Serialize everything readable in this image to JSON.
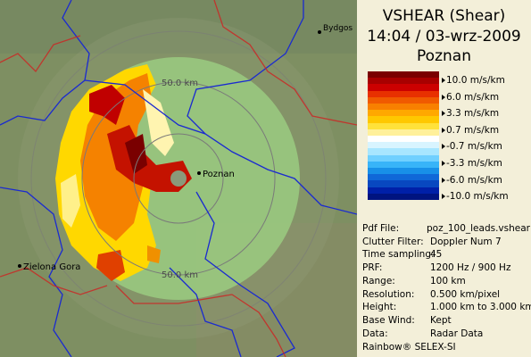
{
  "header": {
    "product": "VSHEAR (Shear)",
    "datetime": "14:04 / 03-wrz-2009",
    "site": "Poznan"
  },
  "legend": {
    "colors": [
      "#7a0000",
      "#a80000",
      "#cc0000",
      "#e83000",
      "#f05a00",
      "#f88000",
      "#ffa800",
      "#ffc800",
      "#ffe23a",
      "#fff09a",
      "#ffffff",
      "#d8f4ff",
      "#a8e6ff",
      "#70d0ff",
      "#38b4f8",
      "#1890e8",
      "#1068d8",
      "#0848c0",
      "#0020a8",
      "#001480"
    ],
    "labels": [
      "10.0 m/s/km",
      "6.0 m/s/km",
      "3.3 m/s/km",
      "0.7 m/s/km",
      "-0.7 m/s/km",
      "-3.3 m/s/km",
      "-6.0 m/s/km",
      "-10.0 m/s/km"
    ]
  },
  "info": [
    {
      "key": "Pdf File:",
      "value": "poz_100_leads.vshear"
    },
    {
      "key": "Clutter Filter:",
      "value": "Doppler Num 7"
    },
    {
      "key": "Time sampling:",
      "value": "45"
    },
    {
      "key": "PRF:",
      "value": "1200 Hz / 900 Hz"
    },
    {
      "key": "Range:",
      "value": "100 km"
    },
    {
      "key": "Resolution:",
      "value": "0.500 km/pixel"
    },
    {
      "key": "Height:",
      "value": "1.000 km to 3.000 km"
    },
    {
      "key": "Base Wind:",
      "value": "Kept"
    },
    {
      "key": "Data:",
      "value": "Radar Data"
    }
  ],
  "footer": "Rainbow® SELEX-SI",
  "map": {
    "cities": [
      "Poznan",
      "Zielona Gora",
      "Bydgos"
    ],
    "range_rings": [
      "50.0 km",
      "50.0 km"
    ]
  }
}
